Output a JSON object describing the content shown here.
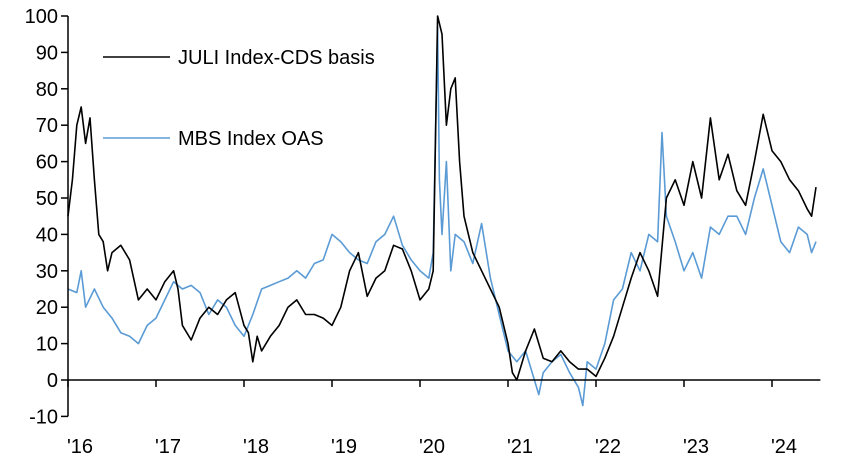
{
  "chart_data": {
    "type": "line",
    "title": "",
    "xlabel": "",
    "ylabel": "",
    "ylim": [
      -10,
      100
    ],
    "yticks": [
      -10,
      0,
      10,
      20,
      30,
      40,
      50,
      60,
      70,
      80,
      90,
      100
    ],
    "xlim": [
      2016,
      2024.55
    ],
    "xticks": [
      {
        "value": 2016,
        "label": "'16"
      },
      {
        "value": 2017,
        "label": "'17"
      },
      {
        "value": 2018,
        "label": "'18"
      },
      {
        "value": 2019,
        "label": "'19"
      },
      {
        "value": 2020,
        "label": "'20"
      },
      {
        "value": 2021,
        "label": "'21"
      },
      {
        "value": 2022,
        "label": "'22"
      },
      {
        "value": 2023,
        "label": "'23"
      },
      {
        "value": 2024,
        "label": "'24"
      }
    ],
    "grid": false,
    "legend_placement": "top-left",
    "series": [
      {
        "name": "JULI Index-CDS basis",
        "color": "#000000",
        "x": [
          2016.0,
          2016.05,
          2016.1,
          2016.15,
          2016.2,
          2016.25,
          2016.3,
          2016.35,
          2016.4,
          2016.45,
          2016.5,
          2016.6,
          2016.7,
          2016.8,
          2016.9,
          2017.0,
          2017.1,
          2017.2,
          2017.25,
          2017.3,
          2017.4,
          2017.5,
          2017.6,
          2017.7,
          2017.8,
          2017.9,
          2018.0,
          2018.05,
          2018.1,
          2018.15,
          2018.2,
          2018.3,
          2018.4,
          2018.5,
          2018.6,
          2018.7,
          2018.8,
          2018.9,
          2019.0,
          2019.1,
          2019.2,
          2019.3,
          2019.4,
          2019.5,
          2019.6,
          2019.7,
          2019.8,
          2019.9,
          2020.0,
          2020.1,
          2020.15,
          2020.2,
          2020.25,
          2020.3,
          2020.35,
          2020.4,
          2020.45,
          2020.5,
          2020.6,
          2020.7,
          2020.8,
          2020.9,
          2021.0,
          2021.05,
          2021.1,
          2021.2,
          2021.3,
          2021.4,
          2021.5,
          2021.6,
          2021.7,
          2021.8,
          2021.9,
          2022.0,
          2022.1,
          2022.2,
          2022.3,
          2022.4,
          2022.5,
          2022.6,
          2022.7,
          2022.8,
          2022.9,
          2023.0,
          2023.1,
          2023.2,
          2023.3,
          2023.4,
          2023.5,
          2023.6,
          2023.7,
          2023.8,
          2023.9,
          2024.0,
          2024.1,
          2024.2,
          2024.3,
          2024.4,
          2024.45,
          2024.5
        ],
        "values": [
          45,
          55,
          70,
          75,
          65,
          72,
          55,
          40,
          38,
          30,
          35,
          37,
          33,
          22,
          25,
          22,
          27,
          30,
          25,
          15,
          11,
          17,
          20,
          18,
          22,
          24,
          15,
          13,
          5,
          12,
          8,
          12,
          15,
          20,
          22,
          18,
          18,
          17,
          15,
          20,
          30,
          35,
          23,
          28,
          30,
          37,
          36,
          30,
          22,
          25,
          30,
          100,
          95,
          70,
          80,
          83,
          60,
          45,
          35,
          30,
          25,
          20,
          10,
          2,
          0,
          8,
          14,
          6,
          5,
          8,
          5,
          3,
          3,
          1,
          6,
          12,
          20,
          28,
          35,
          30,
          23,
          50,
          55,
          48,
          60,
          50,
          72,
          55,
          62,
          52,
          48,
          60,
          73,
          63,
          60,
          55,
          52,
          47,
          45,
          53
        ]
      },
      {
        "name": "MBS Index OAS",
        "color": "#5B9BD5",
        "x": [
          2016.0,
          2016.1,
          2016.15,
          2016.2,
          2016.3,
          2016.4,
          2016.5,
          2016.6,
          2016.7,
          2016.8,
          2016.9,
          2017.0,
          2017.1,
          2017.2,
          2017.3,
          2017.4,
          2017.5,
          2017.6,
          2017.7,
          2017.8,
          2017.9,
          2018.0,
          2018.1,
          2018.2,
          2018.3,
          2018.4,
          2018.5,
          2018.6,
          2018.7,
          2018.8,
          2018.9,
          2019.0,
          2019.1,
          2019.2,
          2019.3,
          2019.4,
          2019.5,
          2019.6,
          2019.7,
          2019.8,
          2019.9,
          2020.0,
          2020.1,
          2020.15,
          2020.2,
          2020.22,
          2020.25,
          2020.3,
          2020.35,
          2020.4,
          2020.5,
          2020.6,
          2020.7,
          2020.8,
          2020.9,
          2021.0,
          2021.1,
          2021.2,
          2021.3,
          2021.35,
          2021.4,
          2021.5,
          2021.6,
          2021.7,
          2021.8,
          2021.85,
          2021.9,
          2022.0,
          2022.1,
          2022.2,
          2022.3,
          2022.4,
          2022.5,
          2022.6,
          2022.7,
          2022.75,
          2022.8,
          2022.9,
          2023.0,
          2023.1,
          2023.2,
          2023.3,
          2023.4,
          2023.5,
          2023.6,
          2023.7,
          2023.8,
          2023.9,
          2024.0,
          2024.1,
          2024.2,
          2024.3,
          2024.4,
          2024.45,
          2024.5
        ],
        "values": [
          25,
          24,
          30,
          20,
          25,
          20,
          17,
          13,
          12,
          10,
          15,
          17,
          22,
          27,
          25,
          26,
          24,
          18,
          22,
          20,
          15,
          12,
          18,
          25,
          26,
          27,
          28,
          30,
          28,
          32,
          33,
          40,
          38,
          35,
          33,
          32,
          38,
          40,
          45,
          37,
          33,
          30,
          28,
          35,
          97,
          55,
          40,
          60,
          30,
          40,
          38,
          32,
          43,
          28,
          18,
          8,
          5,
          8,
          0,
          -4,
          2,
          5,
          7,
          2,
          -2,
          -7,
          5,
          3,
          10,
          22,
          25,
          35,
          30,
          40,
          38,
          68,
          45,
          38,
          30,
          35,
          28,
          42,
          40,
          45,
          45,
          40,
          50,
          58,
          48,
          38,
          35,
          42,
          40,
          35,
          38
        ]
      }
    ]
  }
}
